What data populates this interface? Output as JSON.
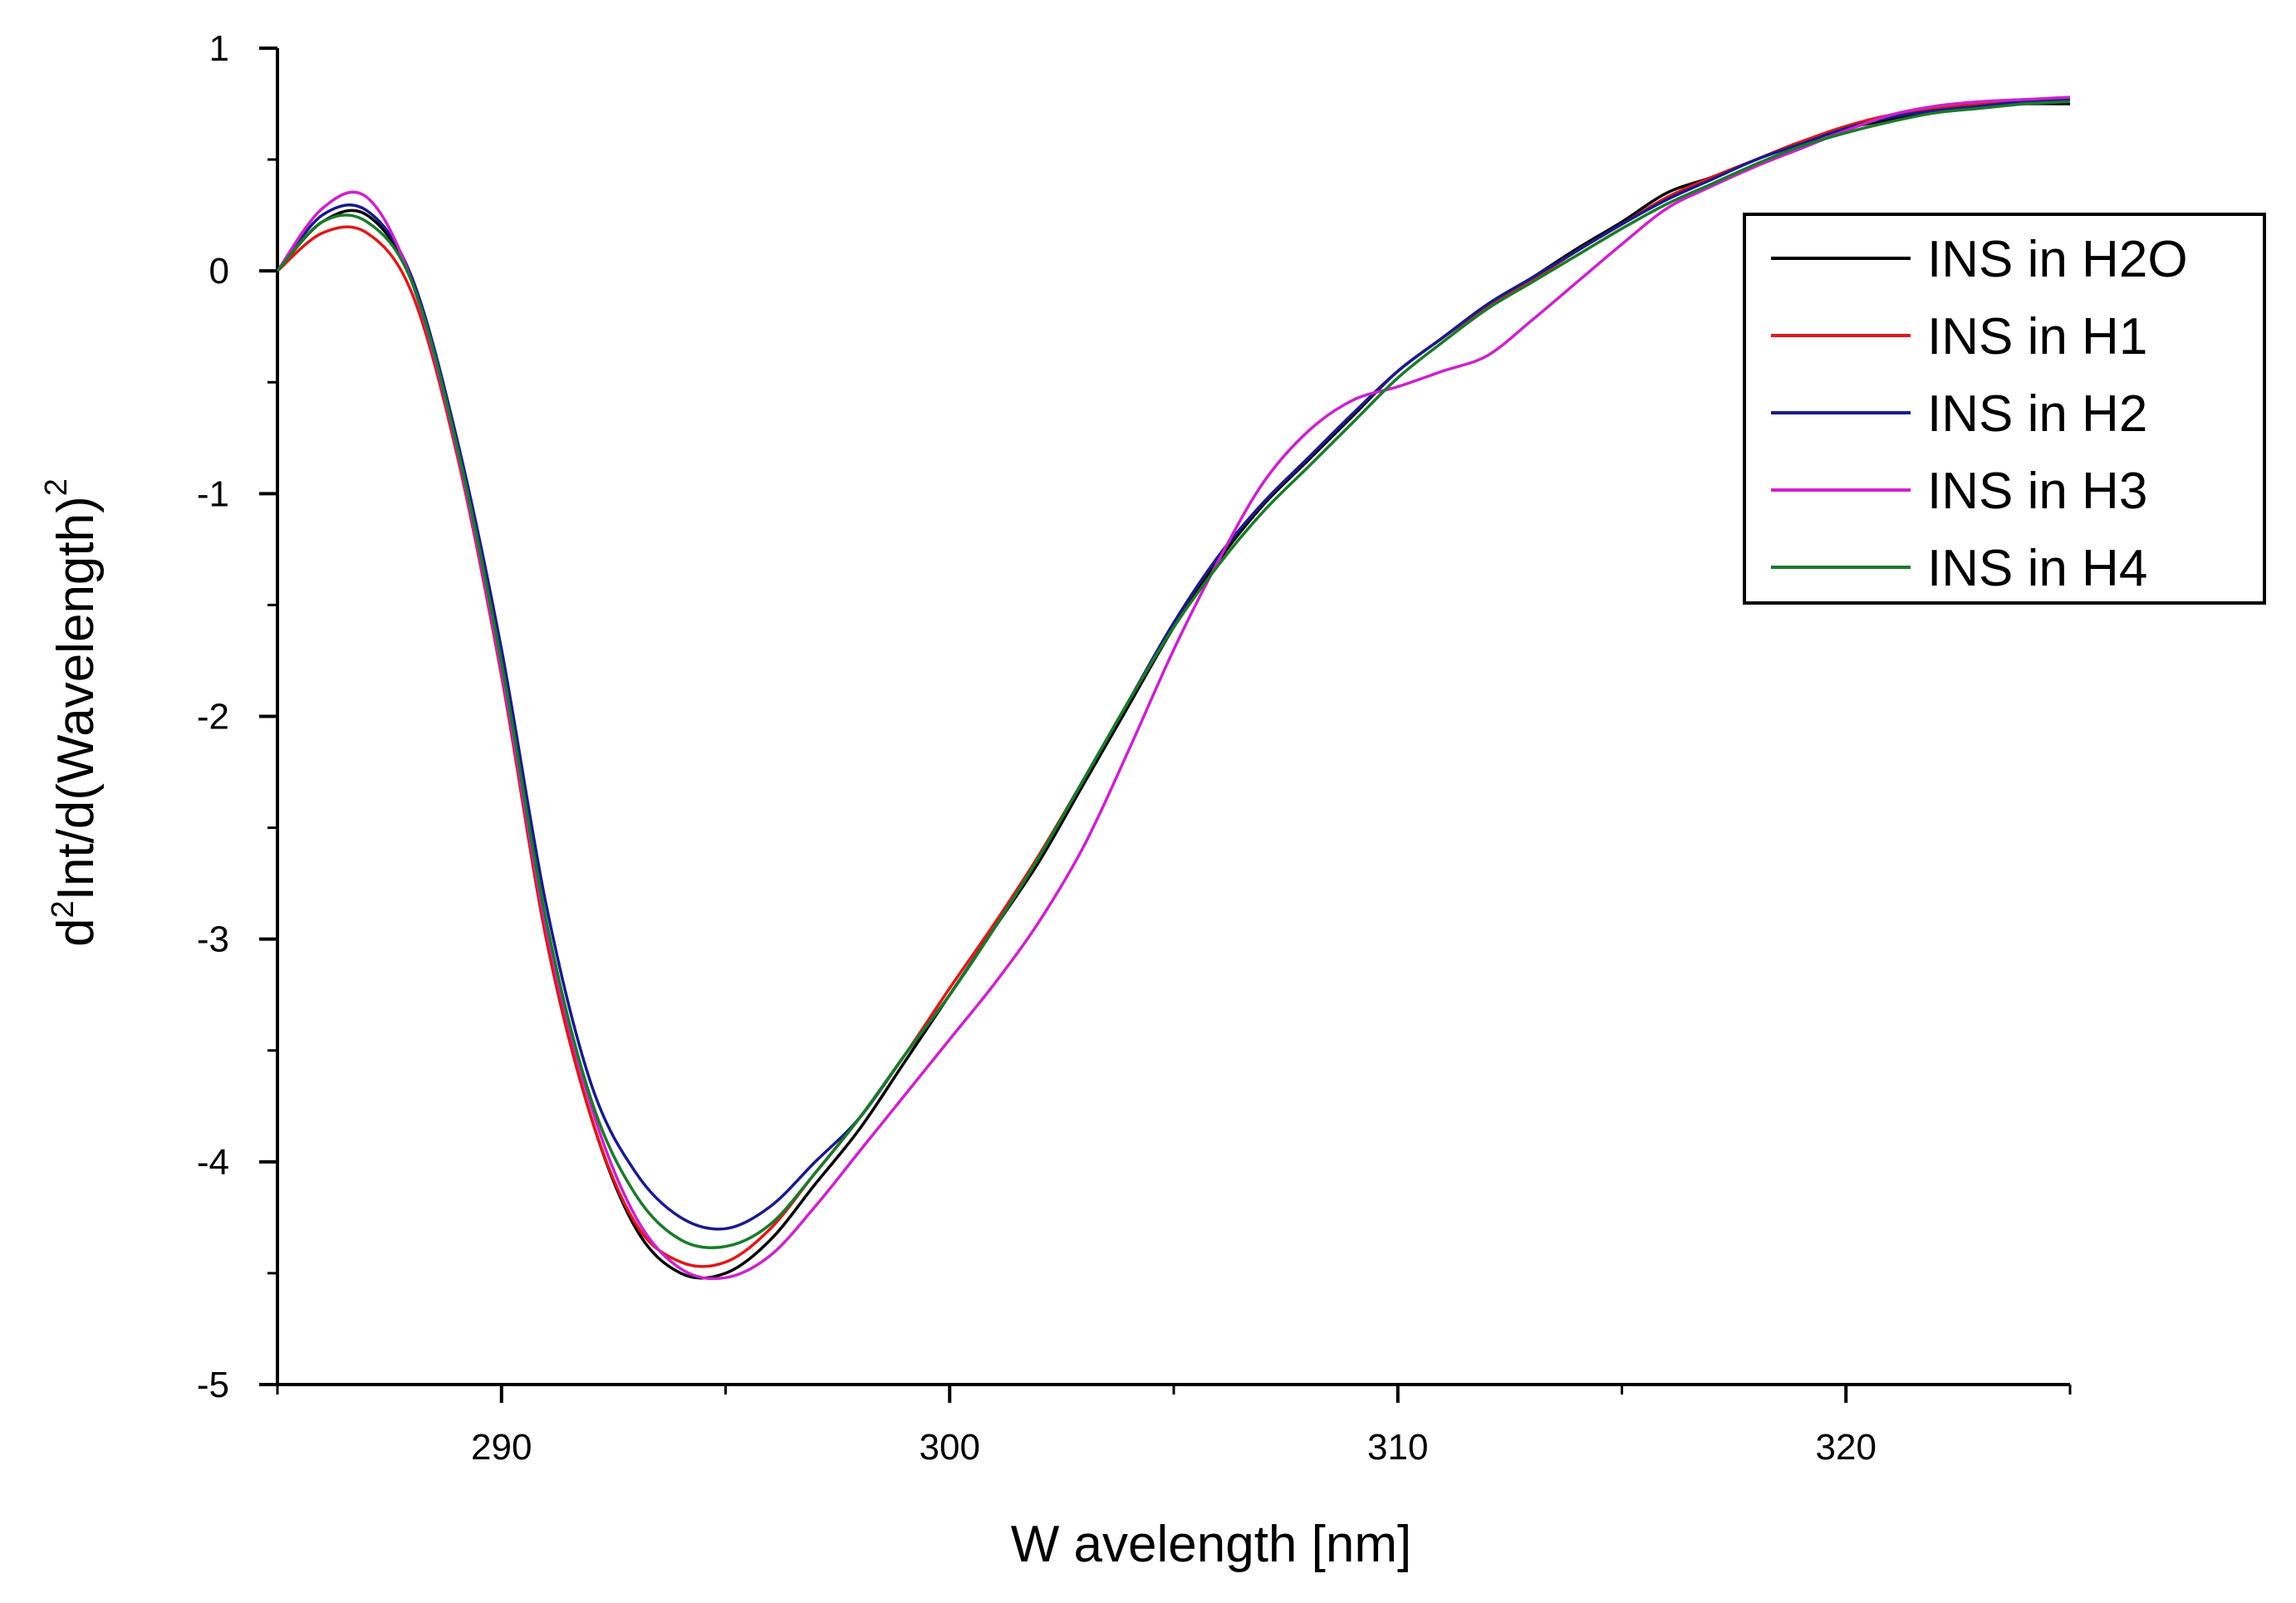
{
  "chart_data": {
    "type": "line",
    "title": "",
    "xlabel": "W avelength [nm]",
    "ylabel": {
      "prefix": "d",
      "prefix_sup": "2",
      "main": "Int/d(Wavelength)",
      "main_sup": "2"
    },
    "xlim": [
      285,
      325
    ],
    "ylim": [
      -5,
      1
    ],
    "xticks": [
      {
        "value": 290,
        "label": "290"
      },
      {
        "value": 300,
        "label": "300"
      },
      {
        "value": 310,
        "label": "310"
      },
      {
        "value": 320,
        "label": "320"
      }
    ],
    "yticks": [
      {
        "value": 1,
        "label": "1"
      },
      {
        "value": 0,
        "label": "0"
      },
      {
        "value": -1,
        "label": "-1"
      },
      {
        "value": -2,
        "label": "-2"
      },
      {
        "value": -3,
        "label": "-3"
      },
      {
        "value": -4,
        "label": "-4"
      },
      {
        "value": -5,
        "label": "-5"
      }
    ],
    "legend_position": "top-right",
    "series": [
      {
        "name": "INS in H2O",
        "color": "#000000",
        "x": [
          285,
          286,
          287,
          288,
          289,
          290,
          291,
          292,
          293,
          294,
          295,
          296,
          297,
          298,
          299,
          300,
          301,
          302,
          303,
          304,
          305,
          306,
          307,
          308,
          309,
          310,
          311,
          312,
          313,
          314,
          315,
          316,
          317,
          318,
          319,
          320,
          321,
          322,
          323,
          324,
          325
        ],
        "values": [
          0.0,
          0.22,
          0.25,
          -0.05,
          -0.8,
          -1.8,
          -3.0,
          -3.8,
          -4.3,
          -4.5,
          -4.5,
          -4.35,
          -4.1,
          -3.85,
          -3.55,
          -3.25,
          -2.95,
          -2.65,
          -2.3,
          -1.95,
          -1.6,
          -1.3,
          -1.05,
          -0.85,
          -0.65,
          -0.45,
          -0.3,
          -0.15,
          -0.03,
          0.1,
          0.22,
          0.35,
          0.42,
          0.5,
          0.58,
          0.64,
          0.68,
          0.72,
          0.74,
          0.75,
          0.75
        ]
      },
      {
        "name": "INS in H1",
        "color": "#e01818",
        "x": [
          285,
          286,
          287,
          288,
          289,
          290,
          291,
          292,
          293,
          294,
          295,
          296,
          297,
          298,
          299,
          300,
          301,
          302,
          303,
          304,
          305,
          306,
          307,
          308,
          309,
          310,
          311,
          312,
          313,
          314,
          315,
          316,
          317,
          318,
          319,
          320,
          321,
          322,
          323,
          324,
          325
        ],
        "values": [
          0.0,
          0.17,
          0.17,
          -0.1,
          -0.82,
          -1.82,
          -3.0,
          -3.8,
          -4.28,
          -4.45,
          -4.45,
          -4.3,
          -4.05,
          -3.8,
          -3.52,
          -3.22,
          -2.93,
          -2.62,
          -2.28,
          -1.93,
          -1.58,
          -1.28,
          -1.04,
          -0.84,
          -0.64,
          -0.45,
          -0.3,
          -0.16,
          -0.04,
          0.09,
          0.21,
          0.33,
          0.42,
          0.5,
          0.58,
          0.65,
          0.7,
          0.73,
          0.75,
          0.76,
          0.77
        ]
      },
      {
        "name": "INS in H2",
        "color": "#1a1a8c",
        "x": [
          285,
          286,
          287,
          288,
          289,
          290,
          291,
          292,
          293,
          294,
          295,
          296,
          297,
          298,
          299,
          300,
          301,
          302,
          303,
          304,
          305,
          306,
          307,
          308,
          309,
          310,
          311,
          312,
          313,
          314,
          315,
          316,
          317,
          318,
          319,
          320,
          321,
          322,
          323,
          324,
          325
        ],
        "values": [
          0.0,
          0.25,
          0.27,
          -0.03,
          -0.75,
          -1.7,
          -2.85,
          -3.65,
          -4.05,
          -4.25,
          -4.3,
          -4.2,
          -4.0,
          -3.8,
          -3.52,
          -3.25,
          -2.95,
          -2.63,
          -2.28,
          -1.93,
          -1.58,
          -1.28,
          -1.04,
          -0.84,
          -0.64,
          -0.45,
          -0.3,
          -0.15,
          -0.03,
          0.09,
          0.21,
          0.32,
          0.41,
          0.5,
          0.57,
          0.64,
          0.69,
          0.72,
          0.74,
          0.76,
          0.77
        ]
      },
      {
        "name": "INS in H3",
        "color": "#cc22cc",
        "x": [
          285,
          286,
          287,
          288,
          289,
          290,
          291,
          292,
          293,
          294,
          295,
          296,
          297,
          298,
          299,
          300,
          301,
          302,
          303,
          304,
          305,
          306,
          307,
          308,
          309,
          310,
          311,
          312,
          313,
          314,
          315,
          316,
          317,
          318,
          319,
          320,
          321,
          322,
          323,
          324,
          325
        ],
        "values": [
          0.0,
          0.28,
          0.33,
          -0.05,
          -0.8,
          -1.8,
          -2.95,
          -3.75,
          -4.25,
          -4.48,
          -4.52,
          -4.42,
          -4.2,
          -3.95,
          -3.7,
          -3.45,
          -3.2,
          -2.92,
          -2.58,
          -2.15,
          -1.7,
          -1.3,
          -0.95,
          -0.72,
          -0.58,
          -0.52,
          -0.45,
          -0.38,
          -0.22,
          -0.05,
          0.12,
          0.28,
          0.38,
          0.47,
          0.55,
          0.63,
          0.7,
          0.74,
          0.76,
          0.77,
          0.78
        ]
      },
      {
        "name": "INS in H4",
        "color": "#1a7a2a",
        "x": [
          285,
          286,
          287,
          288,
          289,
          290,
          291,
          292,
          293,
          294,
          295,
          296,
          297,
          298,
          299,
          300,
          301,
          302,
          303,
          304,
          305,
          306,
          307,
          308,
          309,
          310,
          311,
          312,
          313,
          314,
          315,
          316,
          317,
          318,
          319,
          320,
          321,
          322,
          323,
          324,
          325
        ],
        "values": [
          0.0,
          0.22,
          0.22,
          -0.05,
          -0.78,
          -1.76,
          -2.92,
          -3.72,
          -4.15,
          -4.35,
          -4.38,
          -4.28,
          -4.05,
          -3.8,
          -3.52,
          -3.25,
          -2.95,
          -2.63,
          -2.28,
          -1.93,
          -1.6,
          -1.32,
          -1.08,
          -0.88,
          -0.68,
          -0.48,
          -0.32,
          -0.17,
          -0.05,
          0.07,
          0.19,
          0.3,
          0.39,
          0.48,
          0.56,
          0.62,
          0.67,
          0.71,
          0.73,
          0.75,
          0.76
        ]
      }
    ]
  }
}
